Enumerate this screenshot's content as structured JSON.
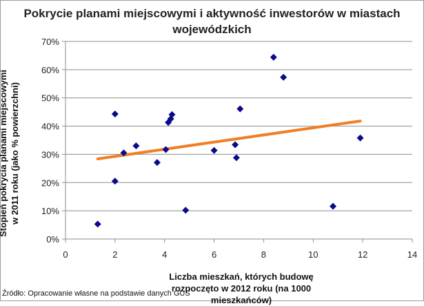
{
  "chart_data": {
    "type": "scatter",
    "title": "Pokrycie planami miejscowymi i aktywność inwestorów w miastach wojewódzkich",
    "xlabel": "Liczba mieszkań, których budowę rozpoczęto w 2012 roku (na 1000 mieszkańców)",
    "ylabel": "Stopień pokrycia planami miejscowymi w 2011 roku (jako % powierzchni)",
    "xlim": [
      0,
      14
    ],
    "ylim": [
      0,
      0.7
    ],
    "x_ticks": [
      "0",
      "2",
      "4",
      "6",
      "8",
      "10",
      "12",
      "14"
    ],
    "y_ticks": [
      "0%",
      "10%",
      "20%",
      "30%",
      "40%",
      "50%",
      "60%",
      "70%"
    ],
    "grid": "horizontal",
    "legend": "none",
    "points": [
      {
        "x": 1.3,
        "y": 0.053
      },
      {
        "x": 2.0,
        "y": 0.443
      },
      {
        "x": 2.0,
        "y": 0.205
      },
      {
        "x": 2.35,
        "y": 0.305
      },
      {
        "x": 2.85,
        "y": 0.33
      },
      {
        "x": 3.7,
        "y": 0.271
      },
      {
        "x": 4.05,
        "y": 0.317
      },
      {
        "x": 4.15,
        "y": 0.413
      },
      {
        "x": 4.25,
        "y": 0.426
      },
      {
        "x": 4.3,
        "y": 0.441
      },
      {
        "x": 4.85,
        "y": 0.102
      },
      {
        "x": 6.0,
        "y": 0.314
      },
      {
        "x": 6.85,
        "y": 0.334
      },
      {
        "x": 6.9,
        "y": 0.288
      },
      {
        "x": 7.05,
        "y": 0.461
      },
      {
        "x": 8.4,
        "y": 0.644
      },
      {
        "x": 8.8,
        "y": 0.573
      },
      {
        "x": 10.8,
        "y": 0.116
      },
      {
        "x": 11.9,
        "y": 0.358
      }
    ],
    "trendline": {
      "x": [
        1.3,
        11.9
      ],
      "y": [
        0.284,
        0.418
      ],
      "color": "#f07e26"
    },
    "point_color": "#0a0a8a"
  },
  "source": "Źródło: Opracowanie własne na podstawie danych GUS"
}
